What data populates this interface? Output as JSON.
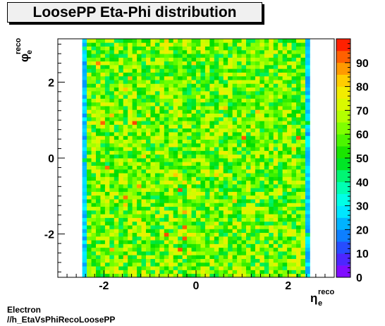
{
  "chart_data": {
    "type": "heatmap",
    "title": "LoosePP Eta-Phi distribution",
    "xlabel": "η",
    "xlabel_sub": "e",
    "xlabel_sup": "reco",
    "ylabel": "φ",
    "ylabel_sub": "e",
    "ylabel_sup": "reco",
    "xlim": [
      -3.0,
      3.0
    ],
    "ylim": [
      -3.1416,
      3.1416
    ],
    "zlim": [
      0,
      100
    ],
    "x_ticks": [
      -2,
      0,
      2
    ],
    "y_ticks": [
      -2,
      0,
      2
    ],
    "z_ticks": [
      0,
      10,
      20,
      30,
      40,
      50,
      60,
      70,
      80,
      90
    ],
    "eta_range": [
      -2.47,
      2.47
    ],
    "n_eta_bins": 50,
    "n_phi_bins": 64,
    "typical_count": 60,
    "edge_count": 25,
    "colorscale": "ROOT rainbow (violet → blue → cyan → green → yellow → red)"
  },
  "footer": {
    "line1": "Electron",
    "line2": "//h_EtaVsPhiRecoLoosePP"
  }
}
